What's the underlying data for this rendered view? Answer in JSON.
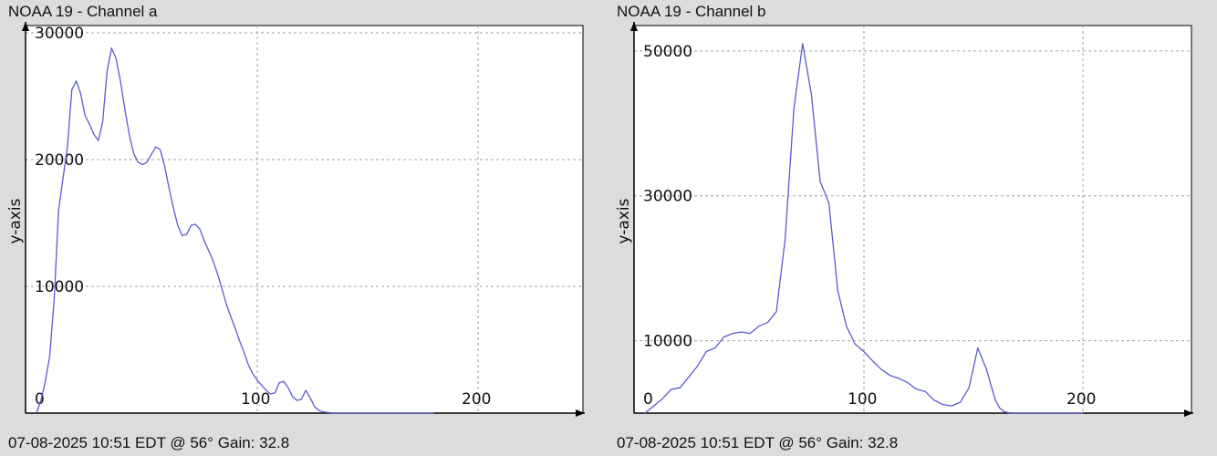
{
  "panels": [
    {
      "title": "NOAA 19 - Channel a",
      "footer": "07-08-2025 10:51 EDT @ 56° Gain: 32.8"
    },
    {
      "title": "NOAA 19 - Channel b",
      "footer": "07-08-2025 10:51 EDT @ 56° Gain: 32.8"
    }
  ],
  "colors": {
    "line": "#5a5ad2",
    "grid": "#a0a0a0",
    "plot_bg": "#ffffff",
    "page_bg": "#dcdcdc",
    "axis": "#000000"
  },
  "chart_data": [
    {
      "type": "line",
      "title": "NOAA 19 - Channel a",
      "ylabel": "y-axis",
      "xlabel": "",
      "xlim": [
        0,
        255
      ],
      "ylim": [
        0,
        30000
      ],
      "x_ticks": [
        0,
        100,
        200
      ],
      "y_ticks": [
        10000,
        20000,
        30000
      ],
      "grid": true,
      "series": [
        {
          "x": [
            0,
            2,
            4,
            6,
            8,
            10,
            12,
            14,
            16,
            18,
            20,
            22,
            24,
            26,
            28,
            30,
            32,
            34,
            36,
            38,
            40,
            42,
            44,
            46,
            48,
            50,
            52,
            54,
            56,
            58,
            60,
            62,
            64,
            66,
            68,
            70,
            72,
            74,
            76,
            78,
            80,
            82,
            84,
            86,
            88,
            90,
            92,
            94,
            96,
            98,
            100,
            102,
            104,
            106,
            108,
            110,
            112,
            114,
            116,
            118,
            120,
            122,
            124,
            126,
            128,
            130,
            132,
            134,
            136,
            138,
            140,
            142,
            144,
            146,
            148,
            150,
            152,
            154,
            156,
            158,
            160,
            162,
            164,
            166,
            168,
            170,
            172,
            174,
            176,
            178,
            180
          ],
          "values": [
            0,
            1000,
            2500,
            4500,
            9000,
            16000,
            18500,
            21000,
            25500,
            26200,
            25200,
            23500,
            22800,
            22000,
            21500,
            23000,
            27000,
            28800,
            28000,
            26200,
            24000,
            22000,
            20500,
            19800,
            19600,
            19800,
            20400,
            21000,
            20800,
            19500,
            17800,
            16200,
            14800,
            14000,
            14100,
            14800,
            14900,
            14500,
            13600,
            12800,
            12000,
            11000,
            9800,
            8600,
            7600,
            6700,
            5700,
            4800,
            3800,
            3100,
            2600,
            2200,
            1800,
            1500,
            1600,
            2400,
            2500,
            2000,
            1300,
            1000,
            1100,
            1800,
            1200,
            500,
            200,
            100,
            50,
            0,
            0,
            0,
            0,
            0,
            0,
            0,
            0,
            0,
            0,
            0,
            0,
            0,
            0,
            0,
            0,
            0,
            0,
            0,
            0,
            0,
            0,
            0,
            0
          ]
        }
      ]
    },
    {
      "type": "line",
      "title": "NOAA 19 - Channel b",
      "ylabel": "y-axis",
      "xlabel": "",
      "xlim": [
        0,
        245
      ],
      "ylim": [
        0,
        52500
      ],
      "x_ticks": [
        0,
        100,
        200
      ],
      "y_ticks": [
        10000,
        30000,
        50000
      ],
      "grid": true,
      "series": [
        {
          "x": [
            0,
            4,
            8,
            12,
            16,
            20,
            24,
            28,
            32,
            36,
            40,
            44,
            48,
            52,
            56,
            60,
            64,
            68,
            72,
            76,
            80,
            84,
            88,
            92,
            96,
            100,
            104,
            108,
            112,
            116,
            120,
            124,
            128,
            132,
            136,
            140,
            144,
            148,
            152,
            156,
            160,
            162,
            164,
            166,
            168,
            172,
            176,
            180,
            184,
            188,
            192,
            196,
            200
          ],
          "values": [
            0,
            1000,
            2000,
            3300,
            3500,
            5000,
            6500,
            8500,
            9000,
            10500,
            11000,
            11200,
            11000,
            12000,
            12500,
            14000,
            24000,
            42000,
            51000,
            44000,
            32000,
            29000,
            17000,
            12000,
            9500,
            8500,
            7200,
            6000,
            5200,
            4800,
            4200,
            3300,
            3000,
            1800,
            1200,
            1000,
            1500,
            3500,
            9000,
            6000,
            1800,
            700,
            200,
            50,
            0,
            0,
            0,
            0,
            0,
            0,
            0,
            0,
            0
          ]
        }
      ]
    }
  ]
}
